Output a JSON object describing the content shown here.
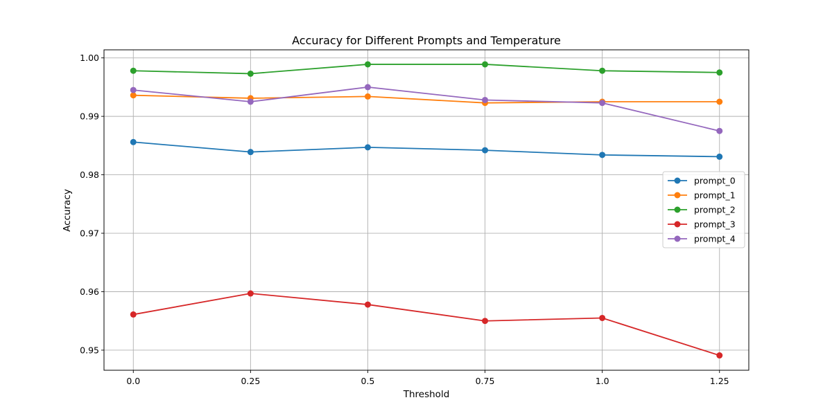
{
  "chart_data": {
    "type": "line",
    "title": "Accuracy for Different Prompts and Temperature",
    "xlabel": "Threshold",
    "ylabel": "Accuracy",
    "x": [
      0.0,
      0.25,
      0.5,
      0.75,
      1.0,
      1.25
    ],
    "x_tick_labels": [
      "0.0",
      "0.25",
      "0.5",
      "0.75",
      "1.0",
      "1.25"
    ],
    "xlim": [
      -0.0625,
      1.3125
    ],
    "ylim": [
      0.94656,
      1.00138
    ],
    "y_ticks": [
      0.95,
      0.96,
      0.97,
      0.98,
      0.99,
      1.0
    ],
    "y_tick_labels": [
      "0.95",
      "0.96",
      "0.97",
      "0.98",
      "0.99",
      "1.00"
    ],
    "grid": true,
    "legend_position": "center-right",
    "marker": "circle",
    "series": [
      {
        "name": "prompt_0",
        "color": "#1f77b4",
        "values": [
          0.9856,
          0.9839,
          0.9847,
          0.9842,
          0.9834,
          0.9831
        ]
      },
      {
        "name": "prompt_1",
        "color": "#ff7f0e",
        "values": [
          0.9936,
          0.9931,
          0.9934,
          0.9923,
          0.9925,
          0.9925
        ]
      },
      {
        "name": "prompt_2",
        "color": "#2ca02c",
        "values": [
          0.9978,
          0.9973,
          0.9989,
          0.9989,
          0.9978,
          0.9975
        ]
      },
      {
        "name": "prompt_3",
        "color": "#d62728",
        "values": [
          0.9561,
          0.9597,
          0.9578,
          0.955,
          0.9555,
          0.9491
        ]
      },
      {
        "name": "prompt_4",
        "color": "#9467bd",
        "values": [
          0.9945,
          0.9925,
          0.995,
          0.9928,
          0.9923,
          0.9875
        ]
      }
    ]
  }
}
